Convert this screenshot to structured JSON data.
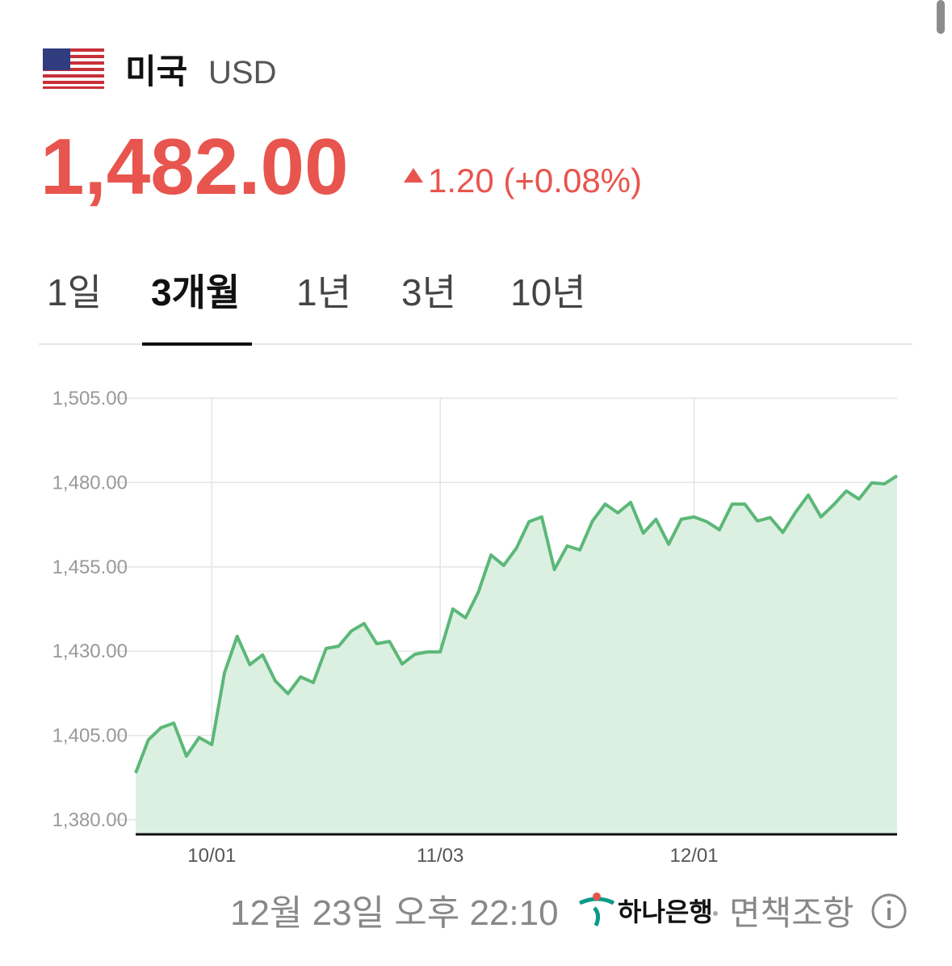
{
  "header": {
    "country": "미국",
    "currency": "USD",
    "price": "1,482.00",
    "change": "1.20 (+0.08%)"
  },
  "tabs": [
    "1일",
    "3개월",
    "1년",
    "3년",
    "10년"
  ],
  "chart_data": {
    "type": "line",
    "categories": [
      null,
      null,
      null,
      null,
      null,
      null,
      "10/01",
      null,
      null,
      null,
      null,
      null,
      null,
      null,
      null,
      null,
      null,
      null,
      null,
      null,
      null,
      null,
      null,
      null,
      "11/03",
      null,
      null,
      null,
      null,
      null,
      null,
      null,
      null,
      null,
      null,
      null,
      null,
      null,
      null,
      null,
      null,
      null,
      null,
      null,
      "12/01",
      null,
      null,
      null,
      null,
      null,
      null,
      null,
      null,
      null,
      null,
      null,
      null,
      null,
      null,
      null,
      null
    ],
    "values": [
      1393.9,
      1403.7,
      1407.3,
      1408.7,
      1398.9,
      1404.4,
      1402.3,
      1423.6,
      1434.4,
      1426.0,
      1428.9,
      1421.2,
      1417.4,
      1422.4,
      1420.7,
      1430.8,
      1431.5,
      1436.0,
      1438.2,
      1432.2,
      1432.9,
      1426.2,
      1429.1,
      1429.8,
      1429.8,
      1442.5,
      1439.9,
      1447.5,
      1458.5,
      1455.4,
      1460.5,
      1468.4,
      1469.8,
      1454.2,
      1461.2,
      1460.0,
      1468.6,
      1473.6,
      1471.0,
      1474.1,
      1465.0,
      1469.1,
      1461.7,
      1469.1,
      1469.8,
      1468.4,
      1466.0,
      1473.6,
      1473.6,
      1468.6,
      1469.6,
      1465.2,
      1471.2,
      1476.3,
      1469.8,
      1473.4,
      1477.5,
      1475.1,
      1479.9,
      1479.6,
      1482.0
    ],
    "color": "#5cb878",
    "area_color": "#dcf0e2",
    "ylim": [
      1375.7,
      1505
    ],
    "yticks": [
      {
        "value": 1380,
        "label": "1,380.00"
      },
      {
        "value": 1405,
        "label": "1,405.00"
      },
      {
        "value": 1430,
        "label": "1,430.00"
      },
      {
        "value": 1455,
        "label": "1,455.00"
      },
      {
        "value": 1480,
        "label": "1,480.00"
      },
      {
        "value": 1505,
        "label": "1,505.00"
      }
    ],
    "grid": true
  },
  "footer": {
    "timestamp": "12월 23일 오후 22:10",
    "bank": "하나은행",
    "disclaimer": "면책조항"
  }
}
